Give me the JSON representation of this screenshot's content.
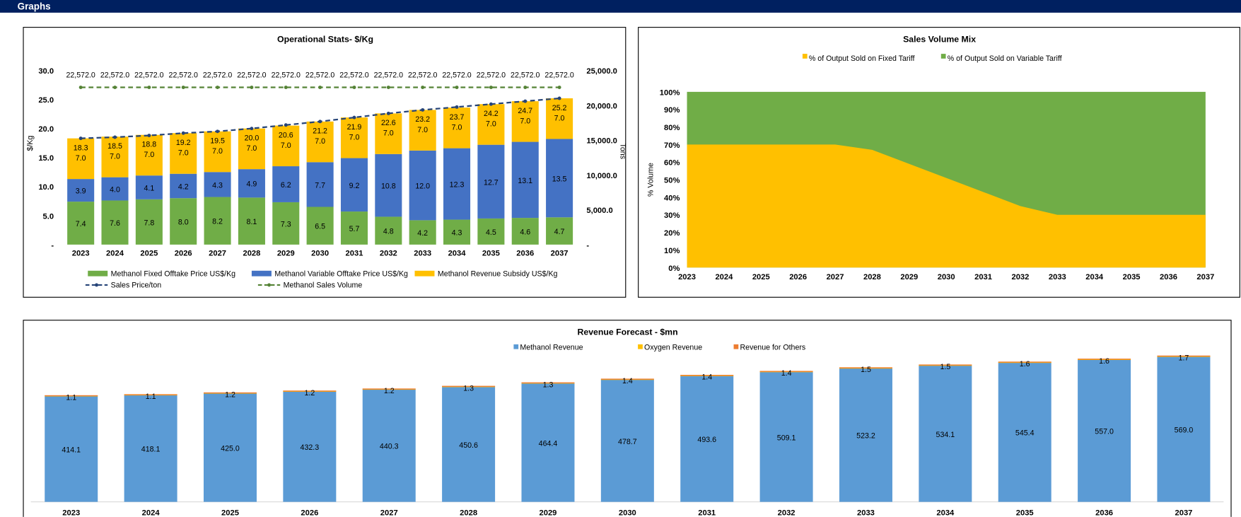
{
  "header": {
    "title": "Graphs"
  },
  "chart_data": [
    {
      "type": "bar",
      "id": "ops",
      "title": "Operational Stats- $/Kg",
      "ylabel": "$/Kg",
      "y2label": "Tons",
      "ylim": [
        0,
        30
      ],
      "y2lim": [
        0,
        25000
      ],
      "yticks": [
        "-",
        "5.0",
        "10.0",
        "15.0",
        "20.0",
        "25.0",
        "30.0"
      ],
      "y2ticks": [
        "-",
        "5,000.0",
        "10,000.0",
        "15,000.0",
        "20,000.0",
        "25,000.0"
      ],
      "categories": [
        "2023",
        "2024",
        "2025",
        "2026",
        "2027",
        "2028",
        "2029",
        "2030",
        "2031",
        "2032",
        "2033",
        "2034",
        "2035",
        "2036",
        "2037"
      ],
      "series": [
        {
          "name": "Methanol Fixed Offtake Price US$/Kg",
          "kind": "stacked-bar",
          "color": "#70AD47",
          "values": [
            7.4,
            7.6,
            7.8,
            8.0,
            8.2,
            8.1,
            7.3,
            6.5,
            5.7,
            4.8,
            4.2,
            4.3,
            4.5,
            4.6,
            4.7
          ]
        },
        {
          "name": "Methanol Variable Offtake Price US$/Kg",
          "kind": "stacked-bar",
          "color": "#4472C4",
          "values": [
            3.9,
            4.0,
            4.1,
            4.2,
            4.3,
            4.9,
            6.2,
            7.7,
            9.2,
            10.8,
            12.0,
            12.3,
            12.7,
            13.1,
            13.5
          ]
        },
        {
          "name": "Methanol Revenue Subsidy US$/Kg",
          "kind": "stacked-bar",
          "color": "#FFC000",
          "values": [
            7.0,
            7.0,
            7.0,
            7.0,
            7.0,
            7.0,
            7.0,
            7.0,
            7.0,
            7.0,
            7.0,
            7.0,
            7.0,
            7.0,
            7.0
          ]
        },
        {
          "name": "Sales Price/ton",
          "kind": "dashed-line",
          "color": "#264478",
          "values": [
            18.3,
            18.5,
            18.8,
            19.2,
            19.5,
            20.0,
            20.6,
            21.2,
            21.9,
            22.6,
            23.2,
            23.7,
            24.2,
            24.7,
            25.2
          ]
        },
        {
          "name": "Methanol Sales Volume",
          "kind": "dashed-line-secondary",
          "color": "#548235",
          "values": [
            22572,
            22572,
            22572,
            22572,
            22572,
            22572,
            22572,
            22572,
            22572,
            22572,
            22572,
            22572,
            22572,
            22572,
            22572
          ]
        }
      ],
      "labels": {
        "fixed": [
          "7.4",
          "7.6",
          "7.8",
          "8.0",
          "8.2",
          "8.1",
          "7.3",
          "6.5",
          "5.7",
          "4.8",
          "4.2",
          "4.3",
          "4.5",
          "4.6",
          "4.7"
        ],
        "variable": [
          "3.9",
          "4.0",
          "4.1",
          "4.2",
          "4.3",
          "4.9",
          "6.2",
          "7.7",
          "9.2",
          "10.8",
          "12.0",
          "12.3",
          "12.7",
          "13.1",
          "13.5"
        ],
        "subsidy": [
          "7.0",
          "7.0",
          "7.0",
          "7.0",
          "7.0",
          "7.0",
          "7.0",
          "7.0",
          "7.0",
          "7.0",
          "7.0",
          "7.0",
          "7.0",
          "7.0",
          "7.0"
        ],
        "price": [
          "18.3",
          "18.5",
          "18.8",
          "19.2",
          "19.5",
          "20.0",
          "20.6",
          "21.2",
          "21.9",
          "22.6",
          "23.2",
          "23.7",
          "24.2",
          "24.7",
          "25.2"
        ],
        "volume": [
          "22,572.0",
          "22,572.0",
          "22,572.0",
          "22,572.0",
          "22,572.0",
          "22,572.0",
          "22,572.0",
          "22,572.0",
          "22,572.0",
          "22,572.0",
          "22,572.0",
          "22,572.0",
          "22,572.0",
          "22,572.0",
          "22,572.0"
        ]
      },
      "legend": "bottom"
    },
    {
      "type": "area",
      "id": "mix",
      "title": "Sales Volume Mix",
      "ylabel": "% Volume",
      "ylim": [
        0,
        100
      ],
      "yticks": [
        "0%",
        "10%",
        "20%",
        "30%",
        "40%",
        "50%",
        "60%",
        "70%",
        "80%",
        "90%",
        "100%"
      ],
      "categories": [
        "2023",
        "2024",
        "2025",
        "2026",
        "2027",
        "2028",
        "2029",
        "2030",
        "2031",
        "2032",
        "2033",
        "2034",
        "2035",
        "2036",
        "2037"
      ],
      "series": [
        {
          "name": "% of Output Sold on Fixed Tariff",
          "color": "#FFC000",
          "values": [
            70,
            70,
            70,
            70,
            70,
            67,
            59,
            51,
            43,
            35,
            30,
            30,
            30,
            30,
            30
          ]
        },
        {
          "name": "% of Output Sold on Variable Tariff",
          "color": "#70AD47",
          "values": [
            30,
            30,
            30,
            30,
            30,
            33,
            41,
            49,
            57,
            65,
            70,
            70,
            70,
            70,
            70
          ]
        }
      ],
      "legend": "top"
    },
    {
      "type": "bar",
      "id": "rev",
      "title": "Revenue Forecast - $mn",
      "ylim": [
        0,
        630
      ],
      "categories": [
        "2023",
        "2024",
        "2025",
        "2026",
        "2027",
        "2028",
        "2029",
        "2030",
        "2031",
        "2032",
        "2033",
        "2034",
        "2035",
        "2036",
        "2037"
      ],
      "series": [
        {
          "name": "Methanol Revenue",
          "color": "#5B9BD5",
          "values": [
            414.1,
            418.1,
            425.0,
            432.3,
            440.3,
            450.6,
            464.4,
            478.7,
            493.6,
            509.1,
            523.2,
            534.1,
            545.4,
            557.0,
            569.0
          ]
        },
        {
          "name": "Oxygen Revenue",
          "color": "#FFC000",
          "values": [
            3,
            3,
            3,
            3,
            3,
            3,
            3,
            3,
            3,
            3,
            3,
            3,
            3,
            3,
            3
          ]
        },
        {
          "name": "Revenue for Others",
          "color": "#ED7D31",
          "values": [
            1.1,
            1.1,
            1.2,
            1.2,
            1.2,
            1.3,
            1.3,
            1.4,
            1.4,
            1.4,
            1.5,
            1.5,
            1.6,
            1.6,
            1.7
          ]
        }
      ],
      "labels": {
        "methanol": [
          "414.1",
          "418.1",
          "425.0",
          "432.3",
          "440.3",
          "450.6",
          "464.4",
          "478.7",
          "493.6",
          "509.1",
          "523.2",
          "534.1",
          "545.4",
          "557.0",
          "569.0"
        ],
        "others": [
          "1.1",
          "1.1",
          "1.2",
          "1.2",
          "1.2",
          "1.3",
          "1.3",
          "1.4",
          "1.4",
          "1.4",
          "1.5",
          "1.5",
          "1.6",
          "1.6",
          "1.7"
        ]
      },
      "legend": "top"
    }
  ]
}
